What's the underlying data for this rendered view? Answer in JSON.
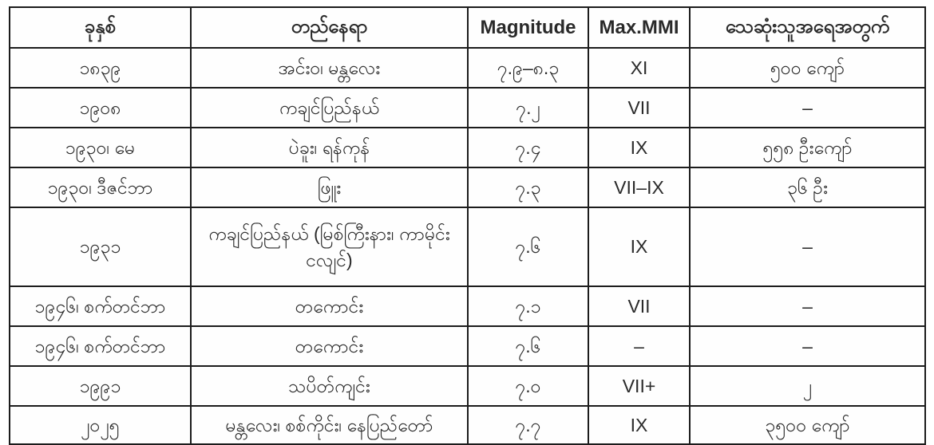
{
  "colors": {
    "background": "#ffffff",
    "table_background": "#fefefe",
    "border": "#1c1c1c",
    "text": "#2a2a2a"
  },
  "chart_data": {
    "type": "table",
    "title": "",
    "columns": [
      "ခုနှစ်",
      "တည်နေရာ",
      "Magnitude",
      "Max.MMI",
      "သေဆုံးသူအရေအတွက်"
    ],
    "rows": [
      [
        "၁၈၃၉",
        "အင်းဝ၊ မန္တလေး",
        "၇.၉–၈.၃",
        "XI",
        "၅၀၀ ကျော်"
      ],
      [
        "၁၉၀၈",
        "ကချင်ပြည်နယ်",
        "၇.၂",
        "VII",
        "–"
      ],
      [
        "၁၉၃၀၊ မေ",
        "ပဲခူး၊ ရန်ကုန်",
        "၇.၄",
        "IX",
        "၅၅၈ ဦးကျော်"
      ],
      [
        "၁၉၃၀၊ ဒီဇင်ဘာ",
        "ဖြူး",
        "၇.၃",
        "VII–IX",
        "၃၆ ဦး"
      ],
      [
        "၁၉၃၁",
        "ကချင်ပြည်နယ် (မြစ်ကြီးနား၊ ကာမိုင်းငလျင်)",
        "၇.၆",
        "IX",
        "–"
      ],
      [
        "၁၉၄၆၊ စက်တင်ဘာ",
        "တကောင်း",
        "၇.၁",
        "VII",
        "–"
      ],
      [
        "၁၉၄၆၊ စက်တင်ဘာ",
        "တကောင်း",
        "၇.၆",
        "–",
        "–"
      ],
      [
        "၁၉၉၁",
        "သပိတ်ကျင်း",
        "၇.၀",
        "VII+",
        "၂"
      ],
      [
        "၂၀၂၅",
        "မန္တလေး၊ စစ်ကိုင်း၊ နေပြည်တော်",
        "၇.၇",
        "IX",
        "၃၅၀၀ ကျော်"
      ]
    ]
  }
}
